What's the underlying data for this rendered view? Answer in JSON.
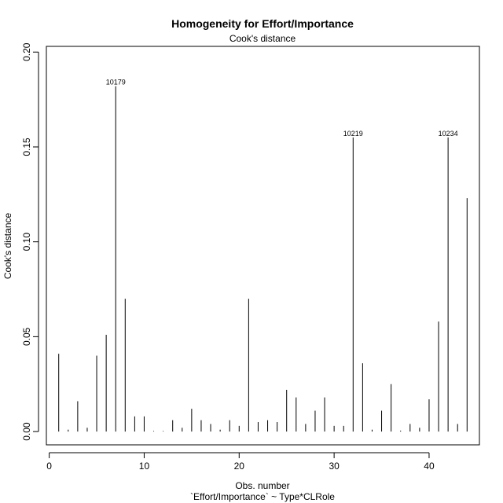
{
  "chart_data": {
    "type": "bar",
    "title": "Homogeneity for Effort/Importance",
    "subtitle": "Cook's distance",
    "xlabel": "Obs. number",
    "xlabel_sub": "`Effort/Importance` ~ Type*CLRole",
    "ylabel": "Cook's distance",
    "xlim": [
      -0.3,
      45.3
    ],
    "ylim": [
      -0.007,
      0.203
    ],
    "x_ticks": [
      0,
      10,
      20,
      30,
      40
    ],
    "x_tick_labels": [
      "0",
      "10",
      "20",
      "30",
      "40"
    ],
    "y_ticks": [
      0.0,
      0.05,
      0.1,
      0.15,
      0.2
    ],
    "y_tick_labels": [
      "0.00",
      "0.05",
      "0.10",
      "0.15",
      "0.20"
    ],
    "grid": false,
    "x": [
      1,
      2,
      3,
      4,
      5,
      6,
      7,
      8,
      9,
      10,
      11,
      12,
      13,
      14,
      15,
      16,
      17,
      18,
      19,
      20,
      21,
      22,
      23,
      24,
      25,
      26,
      27,
      28,
      29,
      30,
      31,
      32,
      33,
      34,
      35,
      36,
      37,
      38,
      39,
      40,
      41,
      42,
      43,
      44
    ],
    "values": [
      0.041,
      0.001,
      0.016,
      0.002,
      0.04,
      0.051,
      0.182,
      0.07,
      0.008,
      0.008,
      0.0003,
      0.0003,
      0.006,
      0.002,
      0.012,
      0.006,
      0.004,
      0.001,
      0.006,
      0.003,
      0.07,
      0.005,
      0.006,
      0.005,
      0.022,
      0.018,
      0.004,
      0.011,
      0.018,
      0.003,
      0.003,
      0.155,
      0.036,
      0.001,
      0.011,
      0.025,
      0.0005,
      0.004,
      0.002,
      0.017,
      0.058,
      0.155,
      0.004,
      0.123
    ],
    "labels": [
      {
        "x": 7,
        "y": 0.182,
        "text": "10179"
      },
      {
        "x": 32,
        "y": 0.155,
        "text": "10219"
      },
      {
        "x": 42,
        "y": 0.155,
        "text": "10234"
      }
    ]
  }
}
